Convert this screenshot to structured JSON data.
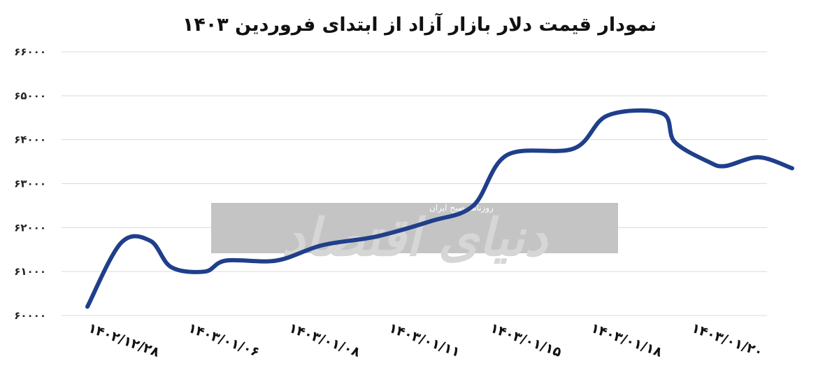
{
  "chart_data": {
    "type": "line",
    "title": "نمودار قیمت دلار بازار آزاد از ابتدای فروردین ۱۴۰۳",
    "xlabel": "",
    "ylabel": "",
    "x": [
      "۱۴۰۲/۱۲/۲۸",
      "۱۴۰۳/۰۱/۰۶",
      "۱۴۰۳/۰۱/۰۸",
      "۱۴۰۳/۰۱/۱۱",
      "۱۴۰۳/۰۱/۱۵",
      "۱۴۰۳/۰۱/۱۸",
      "۱۴۰۳/۰۱/۲۰"
    ],
    "y_ticks": [
      "۶۶۰۰۰",
      "۶۵۰۰۰",
      "۶۴۰۰۰",
      "۶۳۰۰۰",
      "۶۲۰۰۰",
      "۶۱۰۰۰",
      "۶۰۰۰۰"
    ],
    "ylim": [
      60000,
      66000
    ],
    "series": [
      {
        "points": [
          {
            "x": 0.0,
            "y": 60200
          },
          {
            "x": 0.4,
            "y": 61650
          },
          {
            "x": 0.75,
            "y": 61700
          },
          {
            "x": 1.0,
            "y": 61100
          },
          {
            "x": 1.4,
            "y": 61000
          },
          {
            "x": 1.65,
            "y": 61250
          },
          {
            "x": 2.25,
            "y": 61250
          },
          {
            "x": 2.8,
            "y": 61600
          },
          {
            "x": 3.45,
            "y": 61800
          },
          {
            "x": 4.1,
            "y": 62150
          },
          {
            "x": 4.6,
            "y": 62500
          },
          {
            "x": 5.0,
            "y": 63650
          },
          {
            "x": 5.8,
            "y": 63800
          },
          {
            "x": 6.2,
            "y": 64550
          },
          {
            "x": 6.85,
            "y": 64600
          },
          {
            "x": 7.0,
            "y": 63950
          },
          {
            "x": 7.4,
            "y": 63500
          },
          {
            "x": 7.6,
            "y": 63400
          },
          {
            "x": 8.0,
            "y": 63600
          },
          {
            "x": 8.4,
            "y": 63350
          }
        ]
      }
    ],
    "grid": true,
    "line_color": "#1f3f8a",
    "grid_color": "#d9d9d9"
  },
  "watermark": {
    "main": "دنیای اقتصاد",
    "sub": "روزنامه صبح ایران"
  }
}
